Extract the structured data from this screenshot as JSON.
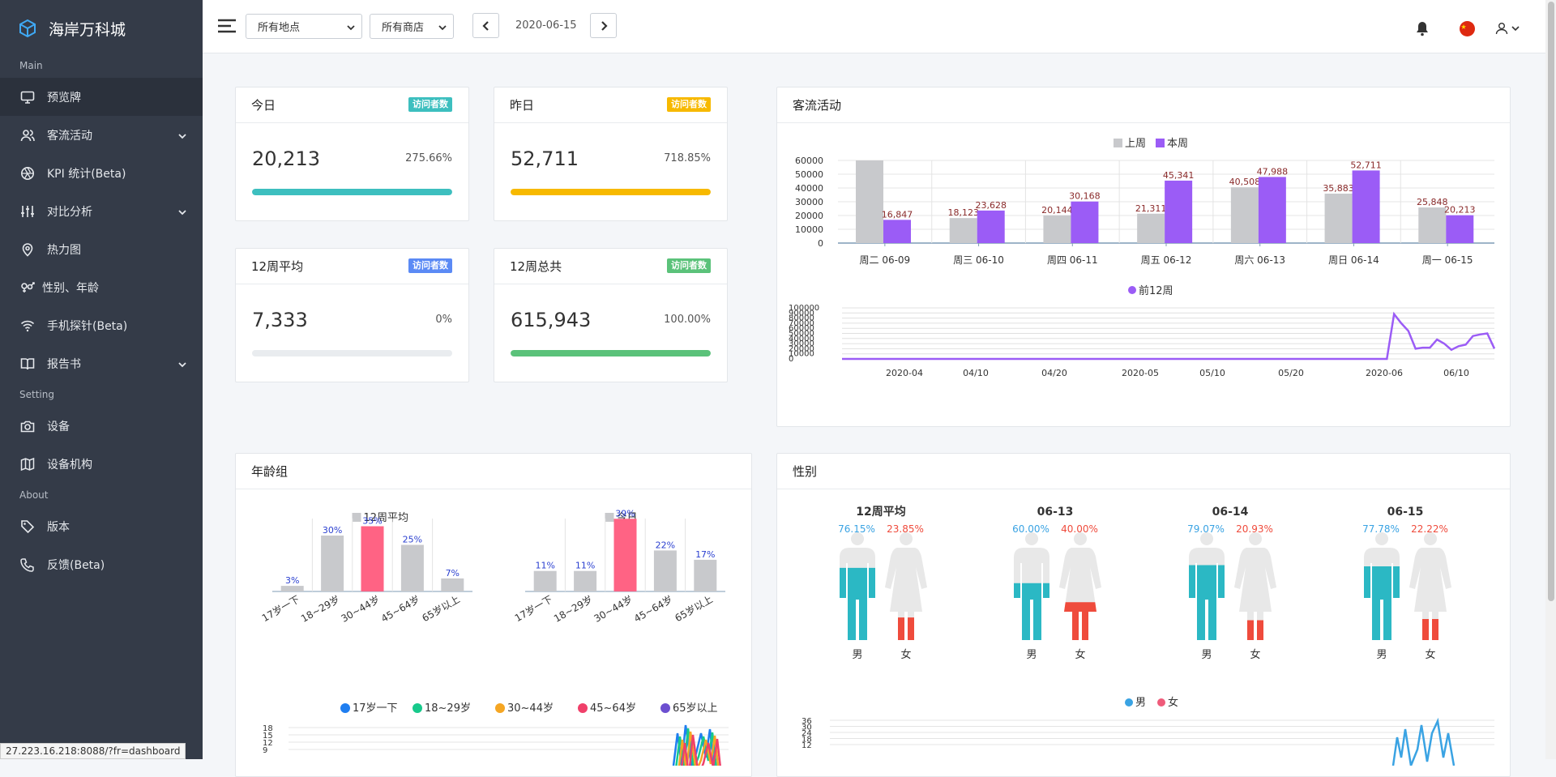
{
  "brand": {
    "name": "海岸万科城"
  },
  "sidebar": {
    "sections": {
      "main": "Main",
      "setting": "Setting",
      "about": "About"
    },
    "items": [
      {
        "label": "预览牌",
        "icon": "monitor-icon"
      },
      {
        "label": "客流活动",
        "icon": "users-icon"
      },
      {
        "label": "KPI 统计(Beta)",
        "icon": "aperture-icon"
      },
      {
        "label": "对比分析",
        "icon": "sliders-icon"
      },
      {
        "label": "热力图",
        "icon": "map-pin-icon"
      },
      {
        "label": "性别、年龄",
        "icon": "gender-icon"
      },
      {
        "label": "手机探针(Beta)",
        "icon": "wifi-icon"
      },
      {
        "label": "报告书",
        "icon": "book-icon"
      },
      {
        "label": "设备",
        "icon": "camera-icon"
      },
      {
        "label": "设备机构",
        "icon": "map-icon"
      },
      {
        "label": "版本",
        "icon": "tag-icon"
      },
      {
        "label": "反馈(Beta)",
        "icon": "phone-icon"
      }
    ]
  },
  "topbar": {
    "location": "所有地点",
    "store": "所有商店",
    "date": "2020-06-15"
  },
  "kpis": [
    {
      "title": "今日",
      "badge": "访问者数",
      "value": "20,213",
      "pct": "275.66%",
      "fill": 1.0,
      "color": "#3dbfbf"
    },
    {
      "title": "昨日",
      "badge": "访问者数",
      "value": "52,711",
      "pct": "718.85%",
      "fill": 1.0,
      "color": "#f7b900"
    },
    {
      "title": "12周平均",
      "badge": "访问者数",
      "value": "7,333",
      "pct": "0%",
      "fill": 0.0,
      "color": "#5b8af5"
    },
    {
      "title": "12周总共",
      "badge": "访问者数",
      "value": "615,943",
      "pct": "100.00%",
      "fill": 1.0,
      "color": "#5bc27a"
    }
  ],
  "traffic": {
    "title": "客流活动",
    "weekly": {
      "type": "bar",
      "legend": [
        "上周",
        "本周"
      ],
      "categories": [
        "周二 06-09",
        "周三 06-10",
        "周四 06-11",
        "周五 06-12",
        "周六 06-13",
        "周日 06-14",
        "周一 06-15"
      ],
      "series": [
        {
          "name": "上周",
          "values": [
            60000,
            18123,
            20144,
            21311,
            40508,
            35883,
            25848
          ],
          "labels": [
            "",
            "18,123",
            "20,144",
            "21,311",
            "40,508",
            "35,883",
            "25,848"
          ],
          "color": "#c8c9cc"
        },
        {
          "name": "本周",
          "values": [
            16847,
            23628,
            30168,
            45341,
            47988,
            52711,
            20213
          ],
          "labels": [
            "16,847",
            "23,628",
            "30,168",
            "45,341",
            "47,988",
            "52,711",
            "20,213"
          ],
          "color": "#9b5cf6"
        }
      ],
      "yticks": [
        "60000",
        "50000",
        "40000",
        "30000",
        "20000",
        "10000",
        "0"
      ],
      "ylim": [
        0,
        60000
      ]
    },
    "trend": {
      "type": "line",
      "legend": "前12周",
      "xticks": [
        "2020-04",
        "04/10",
        "04/20",
        "2020-05",
        "05/10",
        "05/20",
        "2020-06",
        "06/10"
      ],
      "yticks": [
        "100000",
        "90000",
        "80000",
        "70000",
        "60000",
        "50000",
        "40000",
        "30000",
        "20000",
        "10000",
        "0"
      ],
      "values": [
        0,
        0,
        0,
        0,
        0,
        0,
        0,
        0,
        0,
        0,
        0,
        0,
        0,
        0,
        0,
        0,
        0,
        0,
        0,
        0,
        0,
        0,
        0,
        0,
        0,
        0,
        0,
        0,
        0,
        0,
        0,
        0,
        0,
        0,
        0,
        0,
        0,
        0,
        0,
        0,
        0,
        0,
        0,
        0,
        0,
        0,
        0,
        0,
        0,
        0,
        0,
        0,
        0,
        0,
        0,
        0,
        0,
        0,
        0,
        0,
        0,
        0,
        0,
        0,
        0,
        0,
        0,
        0,
        0,
        0,
        0,
        0,
        0,
        0,
        0,
        0,
        0,
        88000,
        70000,
        55000,
        20000,
        22000,
        22000,
        38000,
        30000,
        18000,
        25000,
        28000,
        45000,
        48000,
        50000,
        20213
      ],
      "ylim": [
        0,
        100000
      ]
    }
  },
  "age": {
    "title": "年龄组",
    "categories": [
      "17岁一下",
      "18~29岁",
      "30~44岁",
      "45~64岁",
      "65岁以上"
    ],
    "groups": [
      {
        "name": "12周平均",
        "values": [
          3,
          30,
          35,
          25,
          7
        ]
      },
      {
        "name": "今日",
        "values": [
          11,
          11,
          39,
          22,
          17
        ]
      }
    ],
    "line_legend": [
      {
        "label": "17岁一下",
        "color": "#1f7ef0"
      },
      {
        "label": "18~29岁",
        "color": "#17c98b"
      },
      {
        "label": "30~44岁",
        "color": "#f5a623"
      },
      {
        "label": "45~64岁",
        "color": "#f0406a"
      },
      {
        "label": "65岁以上",
        "color": "#6c4fd0"
      }
    ],
    "line_yticks": [
      "18",
      "15",
      "12",
      "9"
    ]
  },
  "gender": {
    "title": "性别",
    "male_label": "男",
    "female_label": "女",
    "groups": [
      {
        "title": "12周平均",
        "male": "76.15%",
        "female": "23.85%",
        "male_frac": 0.7615,
        "female_frac": 0.2385
      },
      {
        "title": "06-13",
        "male": "60.00%",
        "female": "40.00%",
        "male_frac": 0.6,
        "female_frac": 0.4
      },
      {
        "title": "06-14",
        "male": "79.07%",
        "female": "20.93%",
        "male_frac": 0.7907,
        "female_frac": 0.2093
      },
      {
        "title": "06-15",
        "male": "77.78%",
        "female": "22.22%",
        "male_frac": 0.7778,
        "female_frac": 0.2222
      }
    ],
    "legend": [
      "男",
      "女"
    ],
    "line_yticks": [
      "36",
      "30",
      "24",
      "18",
      "12"
    ]
  },
  "status_url": "27.223.16.218:8088/?fr=dashboard"
}
